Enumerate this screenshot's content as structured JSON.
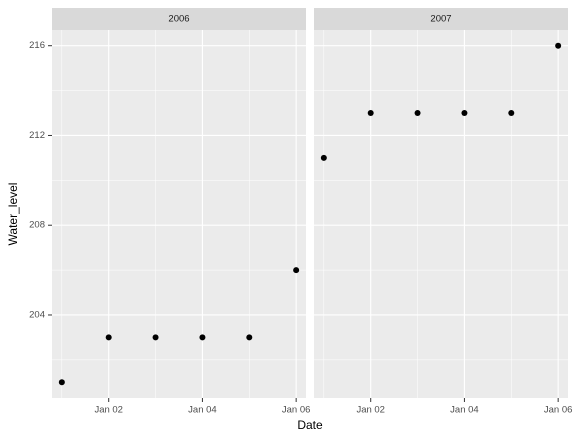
{
  "chart_data": {
    "type": "scatter",
    "x_label": "Date",
    "y_label": "Water_level",
    "color": "#000000",
    "xlim": [
      0.79,
      6.21
    ],
    "xticks": [
      {
        "value": 2,
        "label": "Jan 02"
      },
      {
        "value": 4,
        "label": "Jan 04"
      },
      {
        "value": 6,
        "label": "Jan 06"
      }
    ],
    "ylim": [
      200.3,
      216.7
    ],
    "yticks": [
      204,
      208,
      212,
      216
    ],
    "grid": true,
    "facets": [
      {
        "title": "2006",
        "x": [
          1,
          2,
          3,
          4,
          5,
          6
        ],
        "values": [
          201,
          203,
          203,
          203,
          203,
          206
        ]
      },
      {
        "title": "2007",
        "x": [
          1,
          2,
          3,
          4,
          5,
          6
        ],
        "values": [
          211,
          213,
          213,
          213,
          213,
          216
        ]
      }
    ]
  }
}
